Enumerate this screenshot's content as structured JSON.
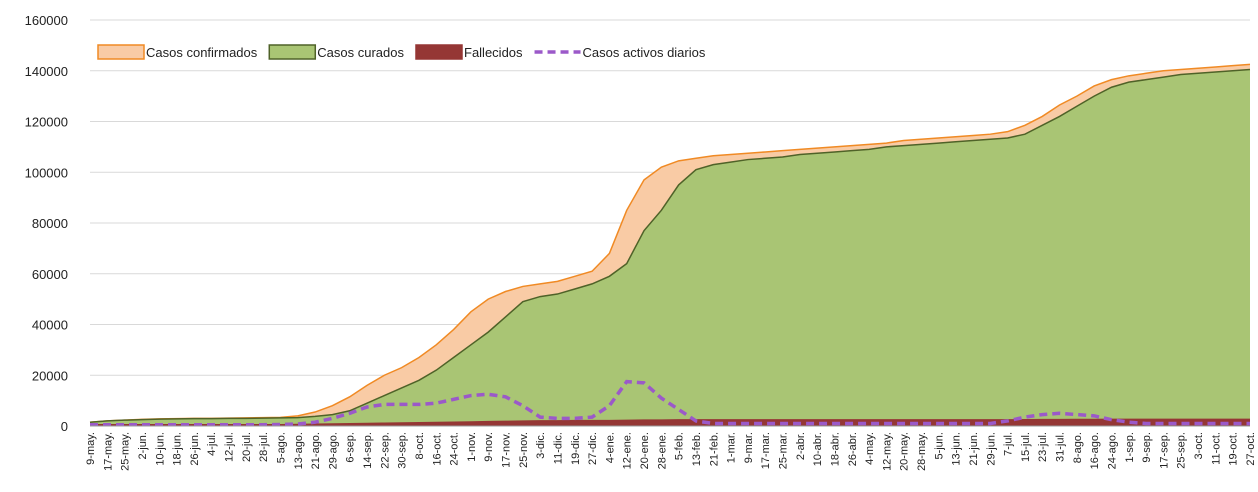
{
  "chart_data": {
    "type": "area",
    "categories": [
      "9-may.",
      "17-may.",
      "25-may.",
      "2-jun.",
      "10-jun.",
      "18-jun.",
      "26-jun.",
      "4-jul.",
      "12-jul.",
      "20-jul.",
      "28-jul.",
      "5-ago.",
      "13-ago.",
      "21-ago.",
      "29-ago.",
      "6-sep.",
      "14-sep.",
      "22-sep.",
      "30-sep.",
      "8-oct.",
      "16-oct.",
      "24-oct.",
      "1-nov.",
      "9-nov.",
      "17-nov.",
      "25-nov.",
      "3-dic.",
      "11-dic.",
      "19-dic.",
      "27-dic.",
      "4-ene.",
      "12-ene.",
      "20-ene.",
      "28-ene.",
      "5-feb.",
      "13-feb.",
      "21-feb.",
      "1-mar.",
      "9-mar.",
      "17-mar.",
      "25-mar.",
      "2-abr.",
      "10-abr.",
      "18-abr.",
      "26-abr.",
      "4-may.",
      "12-may.",
      "20-may.",
      "28-may.",
      "5-jun.",
      "13-jun.",
      "21-jun.",
      "29-jun.",
      "7-jul.",
      "15-jul.",
      "23-jul.",
      "31-jul.",
      "8-ago.",
      "16-ago.",
      "24-ago.",
      "1-sep.",
      "9-sep.",
      "17-sep.",
      "25-sep.",
      "3-oct.",
      "11-oct.",
      "19-oct.",
      "27-oct."
    ],
    "series": [
      {
        "name": "Casos confirmados",
        "style": "area",
        "color": "#f9cba5",
        "line_color": "#f08a24",
        "values": [
          1500,
          2000,
          2300,
          2600,
          2800,
          2900,
          3000,
          3000,
          3100,
          3200,
          3300,
          3400,
          4000,
          5500,
          8000,
          11500,
          16000,
          20000,
          23000,
          27000,
          32000,
          38000,
          45000,
          50000,
          53000,
          55000,
          56000,
          57000,
          59000,
          61000,
          68000,
          85000,
          97000,
          102000,
          104500,
          105500,
          106500,
          107000,
          107500,
          108000,
          108500,
          109000,
          109500,
          110000,
          110500,
          111000,
          111500,
          112500,
          113000,
          113500,
          114000,
          114500,
          115000,
          116000,
          118500,
          122000,
          126500,
          130000,
          134000,
          136500,
          138000,
          139000,
          140000,
          140500,
          141000,
          141500,
          142000,
          142500
        ]
      },
      {
        "name": "Casos curados",
        "style": "area",
        "color": "#a9c574",
        "line_color": "#4f6228",
        "values": [
          1500,
          2000,
          2300,
          2500,
          2700,
          2800,
          2900,
          2900,
          3000,
          3000,
          3100,
          3200,
          3300,
          3800,
          4500,
          6000,
          9000,
          12000,
          15000,
          18000,
          22000,
          27000,
          32000,
          37000,
          43000,
          49000,
          51000,
          52000,
          54000,
          56000,
          59000,
          64000,
          77000,
          85000,
          95000,
          101000,
          103000,
          104000,
          105000,
          105500,
          106000,
          107000,
          107500,
          108000,
          108500,
          109000,
          110000,
          110500,
          111000,
          111500,
          112000,
          112500,
          113000,
          113500,
          115000,
          118500,
          122000,
          126000,
          130000,
          133500,
          135500,
          136500,
          137500,
          138500,
          139000,
          139500,
          140000,
          140500
        ]
      },
      {
        "name": "Fallecidos",
        "style": "area",
        "color": "#953735",
        "line_color": "#953735",
        "values": [
          500,
          500,
          500,
          500,
          500,
          500,
          500,
          500,
          500,
          500,
          500,
          500,
          600,
          700,
          800,
          900,
          1000,
          1100,
          1200,
          1300,
          1400,
          1500,
          1600,
          1700,
          1800,
          1900,
          2000,
          2000,
          2100,
          2100,
          2100,
          2200,
          2300,
          2300,
          2400,
          2400,
          2400,
          2400,
          2400,
          2400,
          2400,
          2400,
          2400,
          2400,
          2400,
          2400,
          2400,
          2400,
          2400,
          2400,
          2400,
          2400,
          2400,
          2400,
          2450,
          2500,
          2500,
          2550,
          2550,
          2600,
          2600,
          2600,
          2600,
          2600,
          2600,
          2600,
          2600,
          2600
        ]
      },
      {
        "name": "Casos activos diarios",
        "style": "dashed",
        "color": "#9b59c9",
        "values": [
          500,
          500,
          500,
          500,
          500,
          500,
          500,
          500,
          500,
          500,
          500,
          600,
          800,
          1500,
          3000,
          5000,
          7500,
          8500,
          8500,
          8500,
          9000,
          10500,
          12000,
          12500,
          11500,
          8000,
          3500,
          3000,
          3000,
          3500,
          8000,
          17500,
          17000,
          11000,
          6500,
          2000,
          1000,
          1000,
          1000,
          1000,
          1000,
          1000,
          1000,
          1000,
          1000,
          1000,
          1000,
          1000,
          1000,
          1000,
          1000,
          1000,
          1000,
          2000,
          3500,
          4500,
          5000,
          4500,
          4000,
          2500,
          1500,
          1000,
          1000,
          1000,
          1000,
          1000,
          1000,
          1000
        ]
      }
    ],
    "ylim": [
      0,
      160000
    ],
    "yticks": [
      0,
      20000,
      40000,
      60000,
      80000,
      100000,
      120000,
      140000,
      160000
    ],
    "grid": true
  }
}
